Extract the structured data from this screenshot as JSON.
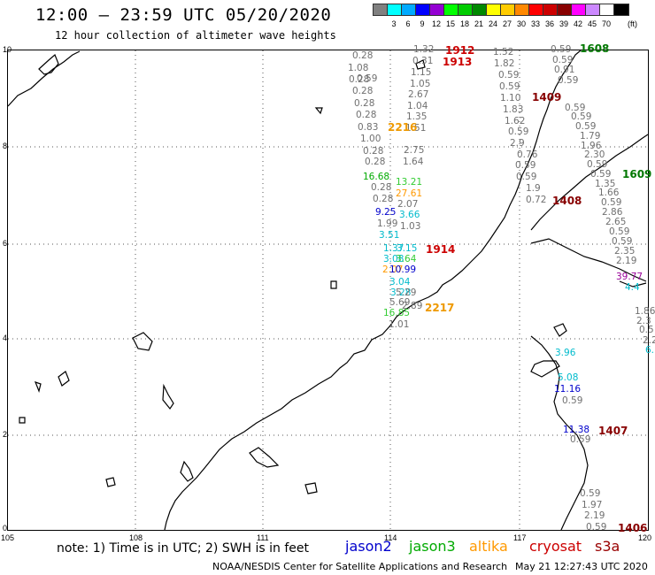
{
  "header": {
    "title": "12:00 — 23:59 UTC 05/20/2020",
    "subtitle": "12 hour collection of altimeter wave heights"
  },
  "colorbar": {
    "unit": "(ft)",
    "swatches": [
      {
        "color": "#808080",
        "label": ""
      },
      {
        "color": "#00ffff",
        "label": "3"
      },
      {
        "color": "#00aaff",
        "label": "6"
      },
      {
        "color": "#0000ff",
        "label": "9"
      },
      {
        "color": "#9400d3",
        "label": "12"
      },
      {
        "color": "#00ff00",
        "label": "15"
      },
      {
        "color": "#00cc00",
        "label": "18"
      },
      {
        "color": "#008800",
        "label": "21"
      },
      {
        "color": "#ffff00",
        "label": "24"
      },
      {
        "color": "#ffcc00",
        "label": "27"
      },
      {
        "color": "#ff8800",
        "label": "30"
      },
      {
        "color": "#ff0000",
        "label": "33"
      },
      {
        "color": "#cc0000",
        "label": "36"
      },
      {
        "color": "#880000",
        "label": "39"
      },
      {
        "color": "#ff00ff",
        "label": "42"
      },
      {
        "color": "#cc88ff",
        "label": "45"
      },
      {
        "color": "#ffffff",
        "label": "70"
      },
      {
        "color": "#000000",
        "label": ""
      }
    ]
  },
  "axes": {
    "lat_ticks": [
      "10",
      "8",
      "6",
      "4",
      "2",
      "0"
    ],
    "lon_ticks": [
      "105",
      "108",
      "111",
      "114",
      "117",
      "120"
    ]
  },
  "colors": {
    "jason2": "#0000cc",
    "jason3": "#00aa00",
    "altika": "#ff8800",
    "cryosat": "#cc0000",
    "s3a": "#880000",
    "value_gray": "#707070"
  },
  "tracks": [
    {
      "sat": "s3a",
      "time": "1912"
    },
    {
      "sat": "cryosat",
      "time": "1913"
    },
    {
      "sat": "cryosat",
      "time": "1914"
    },
    {
      "sat": "s3a",
      "time": "1409"
    },
    {
      "sat": "s3a",
      "time": "1408"
    },
    {
      "sat": "s3a",
      "time": "1407"
    },
    {
      "sat": "s3a",
      "time": "1406"
    },
    {
      "sat": "jason3",
      "time": "1608"
    },
    {
      "sat": "jason3",
      "time": "1609"
    },
    {
      "sat": "altika",
      "time": "2216"
    },
    {
      "sat": "altika",
      "time": "2217"
    }
  ],
  "values": {
    "track_a": [
      "0.28",
      "1.08",
      "0.28",
      "0.59",
      "0.28",
      "0.28",
      "0.28",
      "0.83",
      "1.00",
      "0.28",
      "0.28"
    ],
    "track_b": [
      "1.32",
      "0.31",
      "1.15",
      "1.05",
      "2.67",
      "1.04",
      "1.35",
      "1.51",
      "2.75",
      "1.64"
    ],
    "track_c": [
      "1.52",
      "1.82",
      "0.59",
      "0.59",
      "1.10",
      "1.83",
      "1.62",
      "0.59",
      "2.9",
      "0.76",
      "0.59",
      "0.59",
      "1.9",
      "0.72"
    ],
    "track_d": [
      "0.59",
      "0.59",
      "0.91",
      "0.59",
      "0.59",
      "0.59",
      "0.59",
      "1.79",
      "1.96",
      "2.30",
      "0.59",
      "0.59",
      "1.35",
      "1.66",
      "0.59",
      "2.86",
      "2.65",
      "0.59",
      "0.59",
      "2.35",
      "2.19"
    ],
    "track_e": [
      "16.68",
      "13.21",
      "0.28",
      "27.61",
      "0.28",
      "2.07",
      "9.25",
      "3.66",
      "1.99",
      "1.03",
      "3.51",
      "1.37",
      "3.15",
      "3.08",
      "3.64",
      "2.07",
      "10.99",
      "3.04",
      "3.28",
      "5.29",
      "5.69",
      "2.89",
      "16.85",
      "1.01"
    ],
    "track_f": [
      "39.77",
      "4.4",
      "1.86",
      "2.3",
      "0.5",
      "2.2",
      "6."
    ],
    "track_g": [
      "3.96",
      "5.08",
      "11.16",
      "0.59",
      "11.38",
      "0.59",
      "0.59",
      "1.97",
      "2.19",
      "0.59"
    ]
  },
  "legend": {
    "note": "note: 1) Time is in UTC; 2) SWH is in feet",
    "jason2": "jason2",
    "jason3": "jason3",
    "altika": "altika",
    "cryosat": "cryosat",
    "s3a": "s3a"
  },
  "footer": {
    "credit": "NOAA/NESDIS Center for Satellite Applications and Research",
    "timestamp": "May 21 12:27:43 UTC 2020"
  }
}
